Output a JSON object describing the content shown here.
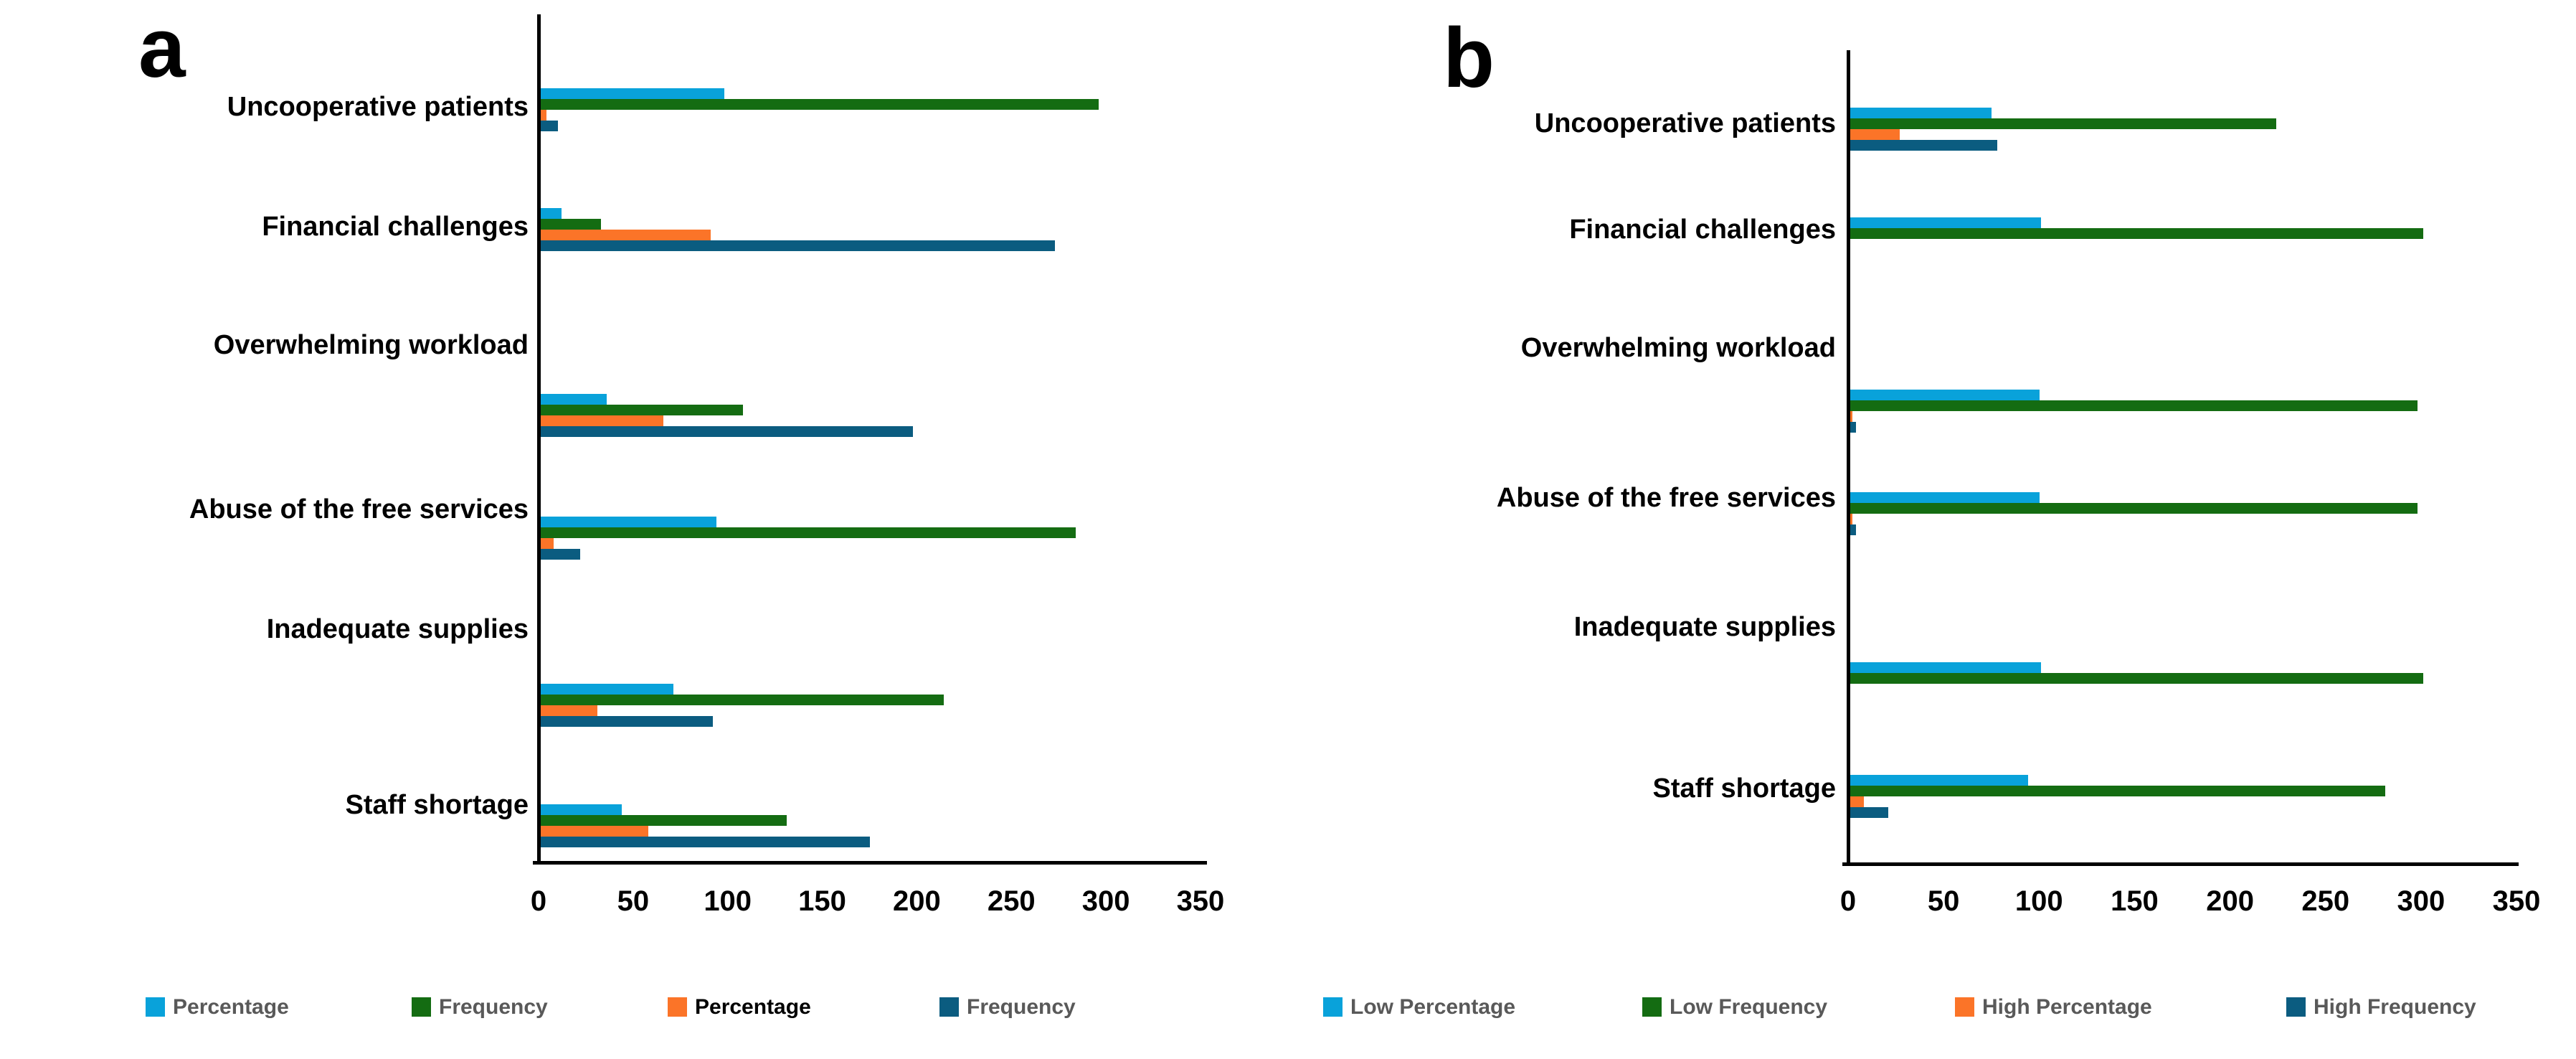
{
  "chart_data": [
    {
      "type": "bar",
      "orientation": "horizontal",
      "title": "a",
      "categories": [
        "Uncooperative patients",
        "Financial challenges",
        "Overwhelming workload",
        "Abuse of the free services",
        "Inadequate supplies",
        "Staff shortage"
      ],
      "series": [
        {
          "name": "Percentage",
          "color": "#09a2da",
          "label_color": "#595959",
          "values": [
            97,
            11,
            35,
            93,
            70,
            43
          ]
        },
        {
          "name": "Frequency",
          "color": "#146c12",
          "label_color": "#595959",
          "values": [
            295,
            32,
            107,
            283,
            213,
            130
          ]
        },
        {
          "name": "Percentage",
          "color": "#fb7428",
          "label_color": "#000000",
          "values": [
            3,
            90,
            65,
            7,
            30,
            57
          ]
        },
        {
          "name": "Frequency",
          "color": "#0b5c80",
          "label_color": "#595959",
          "values": [
            9,
            272,
            197,
            21,
            91,
            174
          ]
        }
      ],
      "xlabel": "",
      "ylabel": "",
      "xlim": [
        0,
        350
      ],
      "x_ticks": [
        0,
        50,
        100,
        150,
        200,
        250,
        300,
        350
      ],
      "grid": false,
      "legend_position": "bottom"
    },
    {
      "type": "bar",
      "orientation": "horizontal",
      "title": "b",
      "categories": [
        "Uncooperative patients",
        "Financial challenges",
        "Overwhelming workload",
        "Abuse of the free services",
        "Inadequate supplies",
        "Staff shortage"
      ],
      "series": [
        {
          "name": "Low Percentage",
          "color": "#09a2da",
          "label_color": "#595959",
          "values": [
            74,
            100,
            99,
            99,
            100,
            93
          ]
        },
        {
          "name": "Low Frequency",
          "color": "#146c12",
          "label_color": "#595959",
          "values": [
            223,
            300,
            297,
            297,
            300,
            280
          ]
        },
        {
          "name": "High Percentage",
          "color": "#fb7428",
          "label_color": "#595959",
          "values": [
            26,
            0,
            1,
            1,
            0,
            7
          ]
        },
        {
          "name": "High Frequency",
          "color": "#0b5c80",
          "label_color": "#595959",
          "values": [
            77,
            0,
            3,
            3,
            0,
            20
          ]
        }
      ],
      "xlabel": "",
      "ylabel": "",
      "xlim": [
        0,
        350
      ],
      "x_ticks": [
        0,
        50,
        100,
        150,
        200,
        250,
        300,
        350
      ],
      "grid": false,
      "legend_position": "bottom"
    }
  ]
}
